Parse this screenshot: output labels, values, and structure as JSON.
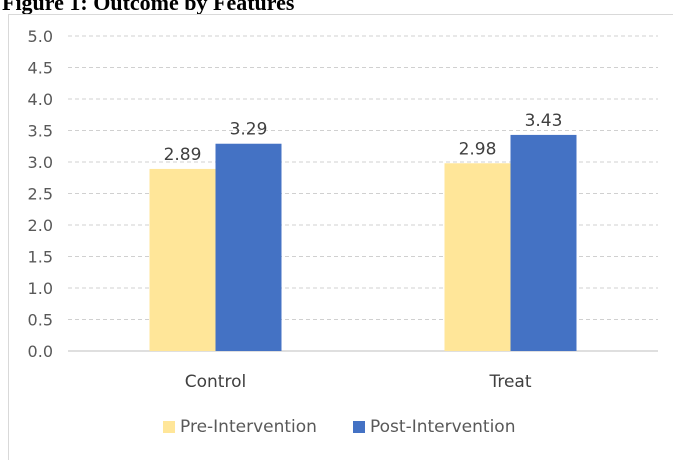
{
  "caption": "Figure 1: Outcome by Features",
  "chart_data": {
    "type": "bar",
    "title": "",
    "xlabel": "",
    "ylabel": "",
    "categories": [
      "Control",
      "Treat"
    ],
    "series": [
      {
        "name": "Pre-Intervention",
        "values": [
          2.89,
          2.98
        ],
        "color": "#FFE699"
      },
      {
        "name": "Post-Intervention",
        "values": [
          3.29,
          3.43
        ],
        "color": "#4472C4"
      }
    ],
    "ylim": [
      0,
      5
    ],
    "yticks": [
      "0.0",
      "0.5",
      "1.0",
      "1.5",
      "2.0",
      "2.5",
      "3.0",
      "3.5",
      "4.0",
      "4.5",
      "5.0"
    ],
    "grid": true,
    "legend": "bottom",
    "data_labels": [
      "2.89",
      "3.29",
      "2.98",
      "3.43"
    ]
  }
}
